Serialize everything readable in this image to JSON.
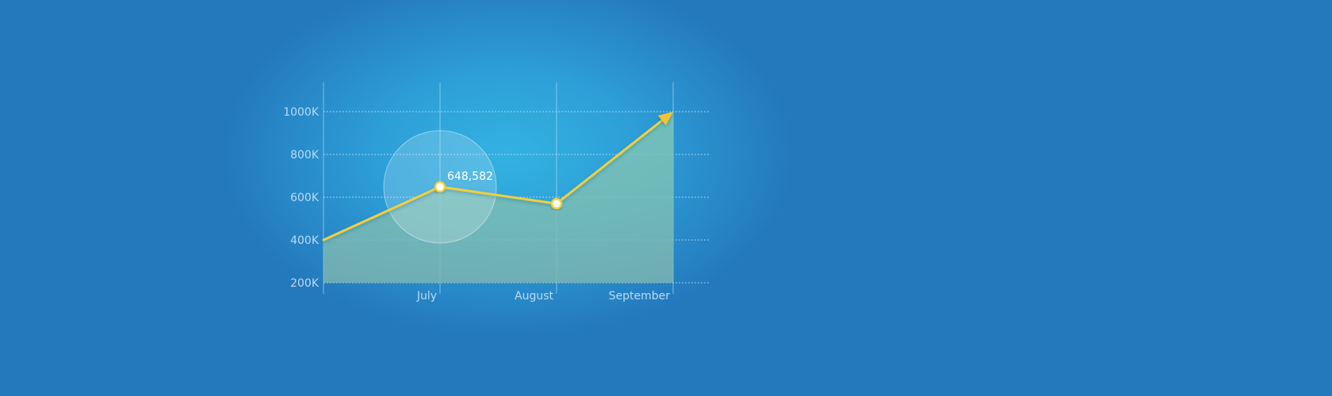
{
  "colors": {
    "background": "#2479bd",
    "glow": "#33b2e1",
    "line": "#f0cf3c",
    "area": "#6fbfb0",
    "grid": "#cfe8f5",
    "label": "#b9dcef",
    "marker_fill": "#ffffff"
  },
  "chart_data": {
    "type": "area",
    "x_tick_labels": [
      "July",
      "August",
      "September"
    ],
    "y_tick_labels": [
      "200K",
      "400K",
      "600K",
      "800K",
      "1000K"
    ],
    "y_ticks": [
      200000,
      400000,
      600000,
      800000,
      1000000
    ],
    "ylim": [
      200000,
      1000000
    ],
    "x": [
      0,
      1,
      2,
      3
    ],
    "values": [
      400000,
      648582,
      570000,
      1000000
    ],
    "markers_at": [
      1,
      2
    ],
    "end_marker": "arrow",
    "grid": {
      "horizontal": true,
      "vertical": true,
      "style": "dotted horizontal, solid vertical"
    },
    "annotations": [
      {
        "index": 1,
        "text": "648,582",
        "highlight": "circle"
      }
    ]
  }
}
